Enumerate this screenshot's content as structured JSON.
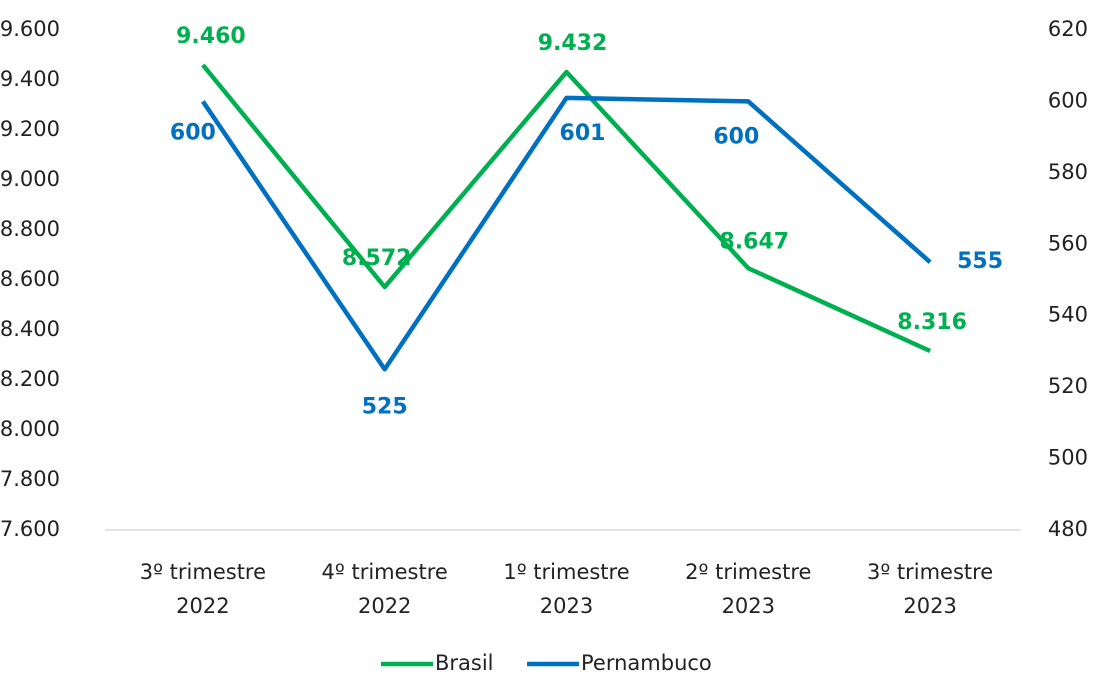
{
  "chart_data": {
    "type": "line",
    "categories": [
      [
        "3º trimestre",
        "2022"
      ],
      [
        "4º trimestre",
        "2022"
      ],
      [
        "1º trimestre",
        "2023"
      ],
      [
        "2º trimestre",
        "2023"
      ],
      [
        "3º trimestre",
        "2023"
      ]
    ],
    "series": [
      {
        "name": "Brasil",
        "color": "#00b050",
        "values": [
          9460,
          8572,
          9432,
          8647,
          8316
        ],
        "value_labels": [
          "9.460",
          "8.572",
          "9.432",
          "8.647",
          "8.316"
        ]
      },
      {
        "name": "Pernambuco",
        "color": "#0070c0",
        "axis": "y2",
        "values": [
          600,
          525,
          601,
          600,
          555
        ],
        "value_labels": [
          "600",
          "525",
          "601",
          "600",
          "555"
        ]
      }
    ],
    "ylim": [
      7600,
      9600
    ],
    "yticks": [
      {
        "value": 7600,
        "label": "7.600"
      },
      {
        "value": 7800,
        "label": "7.800"
      },
      {
        "value": 8000,
        "label": "8.000"
      },
      {
        "value": 8200,
        "label": "8.200"
      },
      {
        "value": 8400,
        "label": "8.400"
      },
      {
        "value": 8600,
        "label": "8.600"
      },
      {
        "value": 8800,
        "label": "8.800"
      },
      {
        "value": 9000,
        "label": "9.000"
      },
      {
        "value": 9200,
        "label": "9.200"
      },
      {
        "value": 9400,
        "label": "9.400"
      },
      {
        "value": 9600,
        "label": "9.600"
      }
    ],
    "y2lim": [
      480,
      620
    ],
    "y2ticks": [
      480,
      500,
      520,
      540,
      560,
      580,
      600,
      620
    ],
    "legend": "bottom"
  }
}
